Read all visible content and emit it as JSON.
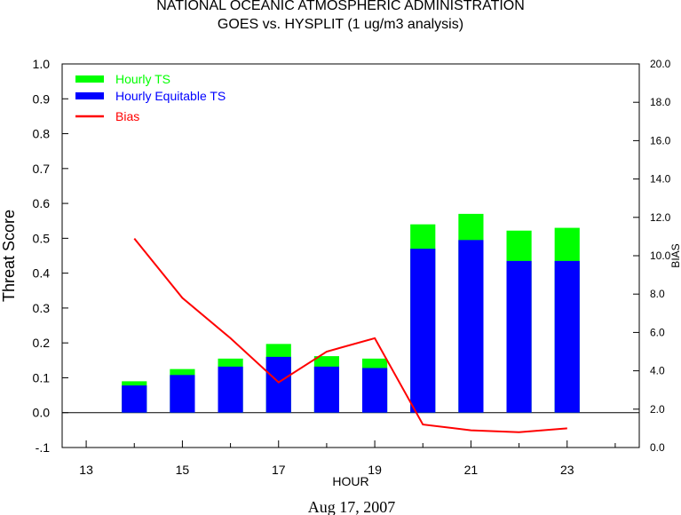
{
  "chart_data": {
    "type": "bar",
    "title": "NATIONAL OCEANIC ATMOSPHERIC ADMINISTRATION",
    "subtitle": "GOES vs. HYSPLIT  (1 ug/m3 analysis)",
    "xlabel": "HOUR",
    "ylabel": "Threat Score",
    "y2label": "BIAS",
    "footer": "Aug 17, 2007",
    "xlim": [
      12.5,
      24.5
    ],
    "ylim": [
      -0.1,
      1.0
    ],
    "y2lim": [
      0.0,
      20.0
    ],
    "x_ticks": [
      13,
      14,
      15,
      16,
      17,
      18,
      19,
      20,
      21,
      22,
      23,
      24
    ],
    "x_tick_labels": [
      "13",
      "15",
      "17",
      "19",
      "21",
      "23"
    ],
    "y_ticks": [
      -0.1,
      0.0,
      0.1,
      0.2,
      0.3,
      0.4,
      0.5,
      0.6,
      0.7,
      0.8,
      0.9,
      1.0
    ],
    "y_tick_labels": [
      "-.1",
      "0.0",
      "0.1",
      "0.2",
      "0.3",
      "0.4",
      "0.5",
      "0.6",
      "0.7",
      "0.8",
      "0.9",
      "1.0"
    ],
    "y2_ticks": [
      0,
      2,
      4,
      6,
      8,
      10,
      12,
      14,
      16,
      18,
      20
    ],
    "y2_tick_labels": [
      "0.0",
      "2.0",
      "4.0",
      "6.0",
      "8.0",
      "10.0",
      "12.0",
      "14.0",
      "16.0",
      "18.0",
      "20.0"
    ],
    "x": [
      14,
      15,
      16,
      17,
      18,
      19,
      20,
      21,
      22,
      23
    ],
    "series": [
      {
        "name": "Hourly TS",
        "color": "#00ff00",
        "axis": "left",
        "kind": "bar",
        "values": [
          0.09,
          0.125,
          0.155,
          0.197,
          0.162,
          0.155,
          0.54,
          0.57,
          0.522,
          0.53
        ]
      },
      {
        "name": "Hourly Equitable TS",
        "color": "#0000ff",
        "axis": "left",
        "kind": "bar",
        "values": [
          0.078,
          0.108,
          0.132,
          0.16,
          0.132,
          0.128,
          0.47,
          0.495,
          0.435,
          0.435
        ]
      },
      {
        "name": "Bias",
        "color": "#ff0000",
        "axis": "right",
        "kind": "line",
        "values": [
          10.9,
          7.8,
          5.7,
          3.4,
          5.0,
          5.7,
          1.2,
          0.9,
          0.8,
          1.0
        ]
      }
    ],
    "legend": "top-left",
    "grid": false
  }
}
